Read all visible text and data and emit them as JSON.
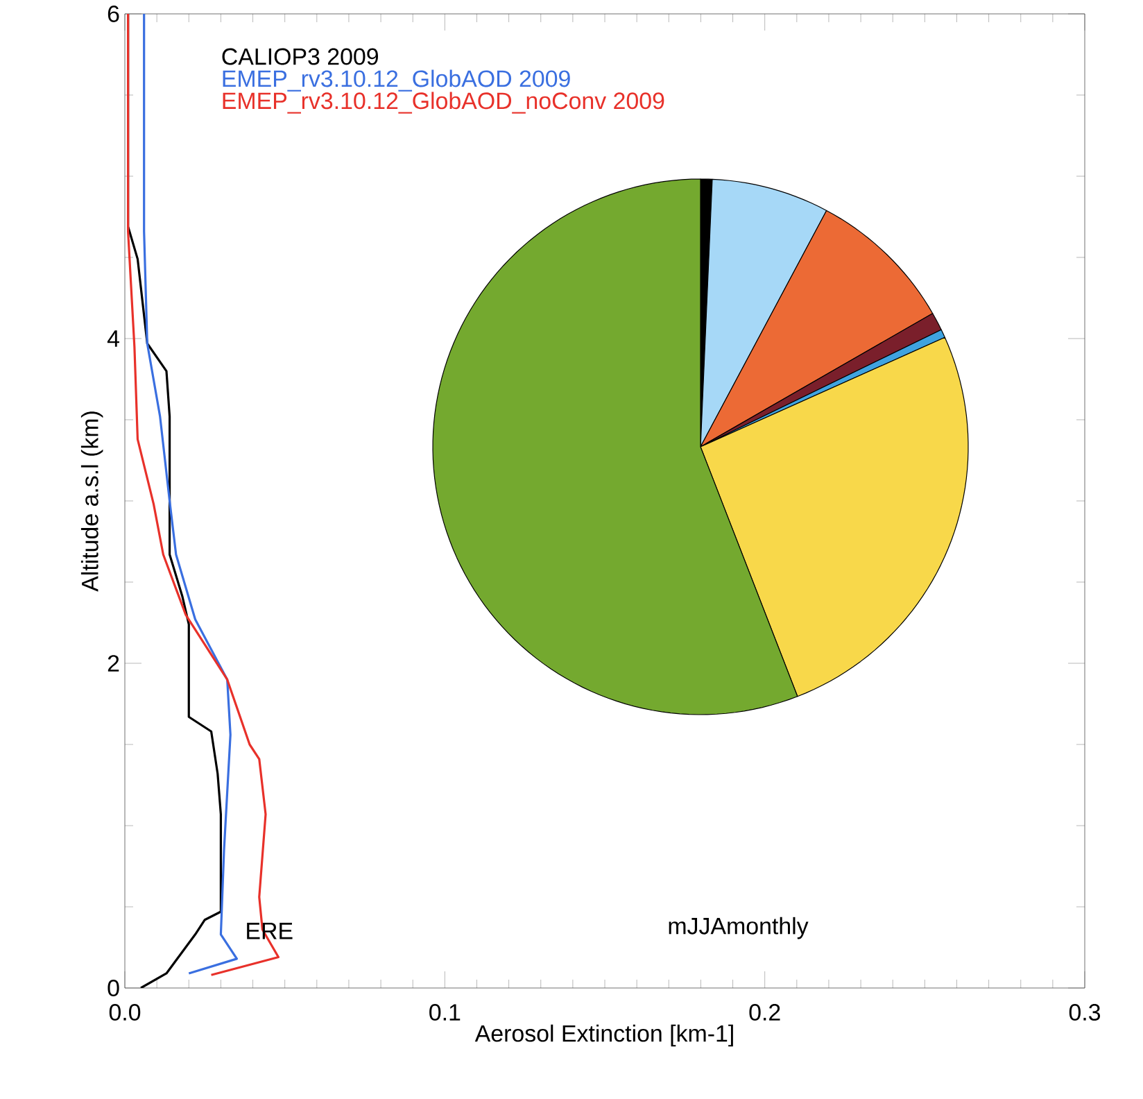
{
  "chart_data": [
    {
      "type": "line",
      "xlabel": "Aerosol Extinction [km-1]",
      "ylabel": "Altitude a.s.l (km)",
      "xlim": [
        0,
        0.3
      ],
      "ylim": [
        0,
        6
      ],
      "xticks": [
        {
          "value": 0,
          "label": "0.0"
        },
        {
          "value": 0.1,
          "label": "0.1"
        },
        {
          "value": 0.2,
          "label": "0.2"
        },
        {
          "value": 0.3,
          "label": "0.3"
        }
      ],
      "yticks": [
        0,
        2,
        4,
        6
      ],
      "legend": "top left",
      "line_style": "solid",
      "annotations": [
        "ERE",
        "mJJAmonthly"
      ],
      "series": [
        {
          "name": "CALIOP3 2009",
          "color": "#000000",
          "x": [
            0.005,
            0.013,
            0.022,
            0.025,
            0.03,
            0.03,
            0.029,
            0.027,
            0.02,
            0.02,
            0.018,
            0.014,
            0.014,
            0.013,
            0.007,
            0.004,
            0.001,
            0.001
          ],
          "values": [
            0,
            0.09,
            0.33,
            0.42,
            0.47,
            1.07,
            1.32,
            1.58,
            1.67,
            2.24,
            2.41,
            2.67,
            3.52,
            3.8,
            3.97,
            4.49,
            4.69,
            6.0
          ]
        },
        {
          "name": "EMEP_rv3.10.12_GlobAOD 2009",
          "color": "#3a6fe0",
          "x": [
            0.02,
            0.035,
            0.03,
            0.031,
            0.033,
            0.032,
            0.022,
            0.016,
            0.014,
            0.011,
            0.007,
            0.006,
            0.006
          ],
          "values": [
            0.09,
            0.18,
            0.33,
            0.85,
            1.56,
            1.9,
            2.27,
            2.67,
            3.0,
            3.52,
            3.97,
            4.66,
            6.0
          ]
        },
        {
          "name": "EMEP_rv3.10.12_GlobAOD_noConv 2009",
          "color": "#e8312a",
          "x": [
            0.027,
            0.048,
            0.043,
            0.042,
            0.044,
            0.042,
            0.039,
            0.032,
            0.019,
            0.012,
            0.009,
            0.004,
            0.003,
            0.001,
            0.001
          ],
          "values": [
            0.08,
            0.19,
            0.36,
            0.56,
            1.07,
            1.41,
            1.5,
            1.9,
            2.3,
            2.67,
            2.98,
            3.38,
            3.95,
            4.66,
            6.0
          ]
        }
      ]
    },
    {
      "type": "pie",
      "categories": [
        null,
        null,
        null,
        null,
        null,
        null,
        null
      ],
      "values": [
        0.7,
        7.1,
        8.9,
        1.1,
        0.5,
        25.8,
        55.9
      ],
      "colors": [
        "#000000",
        "#a6d8f7",
        "#ec6a35",
        "#7a1f2b",
        "#3fa3e0",
        "#f8d84a",
        "#74a92f"
      ]
    }
  ]
}
